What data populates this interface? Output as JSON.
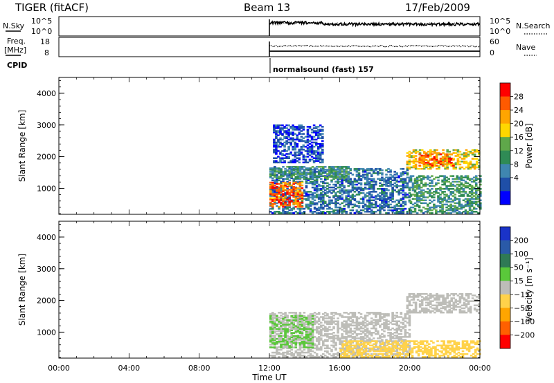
{
  "header": {
    "title": "TIGER (fitACF)",
    "beam": "Beam 13",
    "date": "17/Feb/2009"
  },
  "top_panels": {
    "nsky_label": "N.Sky",
    "nsearch_label": "N.Search",
    "nsky_ticks": [
      "10^5",
      "10^0"
    ],
    "nsearch_ticks": [
      "10^5",
      "10^0"
    ],
    "freq_label": "Freq.",
    "freq_unit": "[MHz]",
    "freq_ticks": [
      "18",
      "8"
    ],
    "nave_label": "Nave",
    "nave_ticks": [
      "60",
      "0"
    ],
    "cpid_label": "CPID",
    "cpid_text": "normalsound (fast) 157"
  },
  "colors": {
    "power_scale": [
      "#0000ff",
      "#1f4fa8",
      "#3f86b0",
      "#2f8b55",
      "#5fa84a",
      "#ffd700",
      "#ffa500",
      "#ff5a00",
      "#ff0000"
    ],
    "velocity_scale": [
      "#1a33c8",
      "#2a5aa8",
      "#2f7a55",
      "#5ac83a",
      "#bdbdb8",
      "#ffd24a",
      "#ffa500",
      "#ff6000",
      "#ff0000"
    ]
  },
  "chart_data": [
    {
      "type": "heatmap",
      "name": "power",
      "ylabel": "Slant Range [km]",
      "yticks": [
        "4000",
        "3000",
        "2000",
        "1000"
      ],
      "ylim": [
        180,
        4500
      ],
      "xlim": [
        "00:00",
        "24:00"
      ],
      "colorbar_label": "Power [dB]",
      "colorbar_ticks": [
        "28",
        "24",
        "20",
        "16",
        "12",
        "8",
        "4"
      ],
      "colorbar_range": [
        0,
        32
      ],
      "regions": [
        {
          "t": [
            12.0,
            20.0
          ],
          "range": [
            200,
            1600
          ],
          "level": 8
        },
        {
          "t": [
            12.0,
            13.8
          ],
          "range": [
            400,
            1200
          ],
          "level": 26
        },
        {
          "t": [
            12.0,
            16.5
          ],
          "range": [
            1300,
            1700
          ],
          "level": 12
        },
        {
          "t": [
            12.2,
            15.0
          ],
          "range": [
            1800,
            3000
          ],
          "level": 5
        },
        {
          "t": [
            19.8,
            24.0
          ],
          "range": [
            1600,
            2200
          ],
          "level": 20
        },
        {
          "t": [
            20.5,
            22.5
          ],
          "range": [
            1700,
            2100
          ],
          "level": 26
        },
        {
          "t": [
            20.0,
            24.0
          ],
          "range": [
            200,
            1400
          ],
          "level": 12
        }
      ]
    },
    {
      "type": "heatmap",
      "name": "velocity",
      "ylabel": "Slant Range [km]",
      "yticks": [
        "4000",
        "3000",
        "2000",
        "1000"
      ],
      "ylim": [
        180,
        4500
      ],
      "xlim": [
        "00:00",
        "24:00"
      ],
      "xticks": [
        "00:00",
        "04:00",
        "08:00",
        "12:00",
        "16:00",
        "20:00",
        "00:00"
      ],
      "xlabel": "Time UT",
      "colorbar_label": "Velocity [m s⁻¹]",
      "colorbar_ticks": [
        "200",
        "100",
        "50",
        "15",
        "−15",
        "−50",
        "−100",
        "−200"
      ],
      "colorbar_range": [
        -250,
        250
      ],
      "regions": [
        {
          "t": [
            12.0,
            20.0
          ],
          "range": [
            200,
            1600
          ],
          "level": 0
        },
        {
          "t": [
            12.0,
            14.5
          ],
          "range": [
            500,
            1500
          ],
          "level": 30
        },
        {
          "t": [
            19.8,
            24.0
          ],
          "range": [
            1600,
            2200
          ],
          "level": 0
        },
        {
          "t": [
            16.0,
            24.0
          ],
          "range": [
            200,
            700
          ],
          "level": -60
        }
      ]
    }
  ]
}
